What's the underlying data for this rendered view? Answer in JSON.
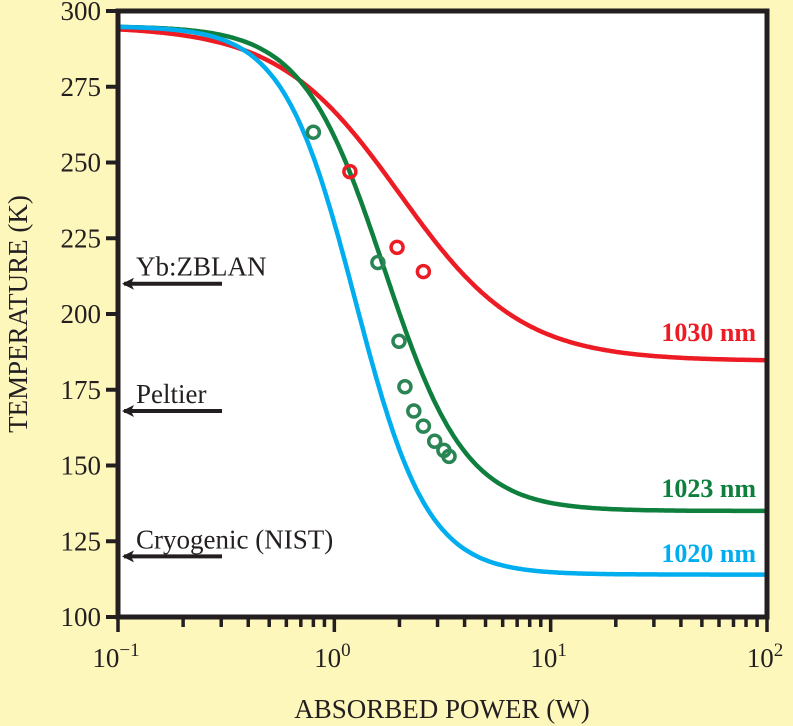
{
  "chart_data": {
    "type": "line",
    "title": "",
    "xlabel": "ABSORBED POWER (W)",
    "ylabel": "TEMPERATURE (K)",
    "xscale": "log",
    "xlim": [
      0.1,
      100
    ],
    "ylim": [
      100,
      300
    ],
    "grid": false,
    "legend": "inline-right",
    "x_ticks": [
      {
        "value": 0.1,
        "base": "10",
        "exp": "−1"
      },
      {
        "value": 1,
        "base": "10",
        "exp": "0"
      },
      {
        "value": 10,
        "base": "10",
        "exp": "1"
      },
      {
        "value": 100,
        "base": "10",
        "exp": "2"
      }
    ],
    "y_ticks": [
      "100",
      "125",
      "150",
      "175",
      "200",
      "225",
      "250",
      "275",
      "300"
    ],
    "series": [
      {
        "name": "1030 nm",
        "color": "#ed1c24",
        "fit": {
          "T0": 295,
          "Tmin": 184.5,
          "P50": 2.0,
          "n": 1.55
        },
        "points": [
          {
            "x": 1.18,
            "y": 247
          },
          {
            "x": 1.95,
            "y": 222
          },
          {
            "x": 2.58,
            "y": 214
          }
        ]
      },
      {
        "name": "1023 nm",
        "color": "#0f7f3e",
        "fit": {
          "T0": 295,
          "Tmin": 135,
          "P50": 1.7,
          "n": 2.3
        },
        "points": [
          {
            "x": 0.8,
            "y": 260
          },
          {
            "x": 1.59,
            "y": 217
          },
          {
            "x": 1.99,
            "y": 191
          },
          {
            "x": 2.12,
            "y": 176
          },
          {
            "x": 2.33,
            "y": 168
          },
          {
            "x": 2.58,
            "y": 163
          },
          {
            "x": 2.91,
            "y": 158
          },
          {
            "x": 3.21,
            "y": 155
          },
          {
            "x": 3.39,
            "y": 153
          }
        ]
      },
      {
        "name": "1020 nm",
        "color": "#00aeef",
        "fit": {
          "T0": 295,
          "Tmin": 114,
          "P50": 1.25,
          "n": 2.6
        },
        "points": []
      }
    ],
    "annotations": [
      {
        "text": "Yb:ZBLAN",
        "y": 210
      },
      {
        "text": "Peltier",
        "y": 168
      },
      {
        "text": "Cryogenic (NIST)",
        "y": 120
      }
    ]
  }
}
